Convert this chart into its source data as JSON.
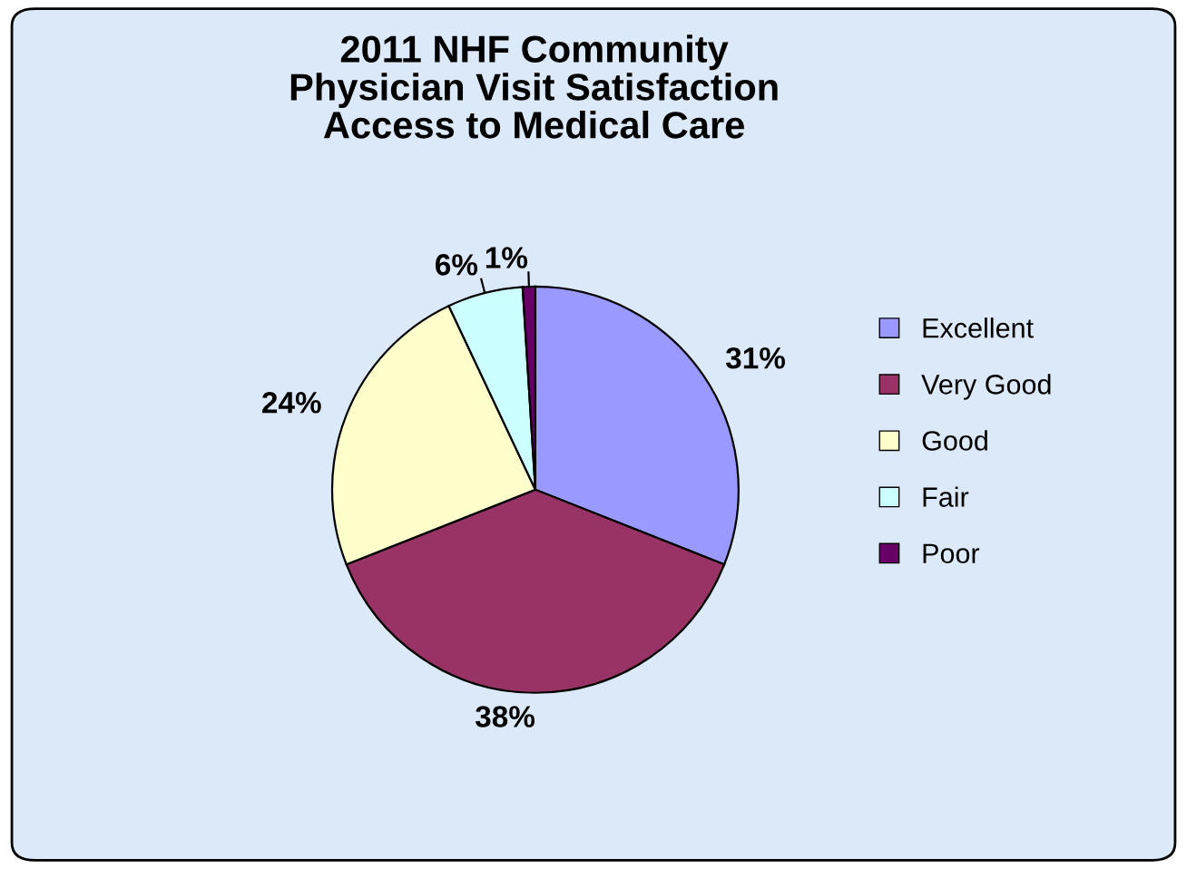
{
  "chart_data": {
    "type": "pie",
    "title": "2011 NHF Community\nPhysician Visit Satisfaction\nAccess to Medical Care",
    "categories": [
      "Excellent",
      "Very Good",
      "Good",
      "Fair",
      "Poor"
    ],
    "values": [
      31,
      38,
      24,
      6,
      1
    ],
    "colors": [
      "#9999ff",
      "#993366",
      "#ffffcc",
      "#ccffff",
      "#660066"
    ],
    "value_labels": [
      "31%",
      "38%",
      "24%",
      "6%",
      "1%"
    ],
    "legend": "right"
  }
}
